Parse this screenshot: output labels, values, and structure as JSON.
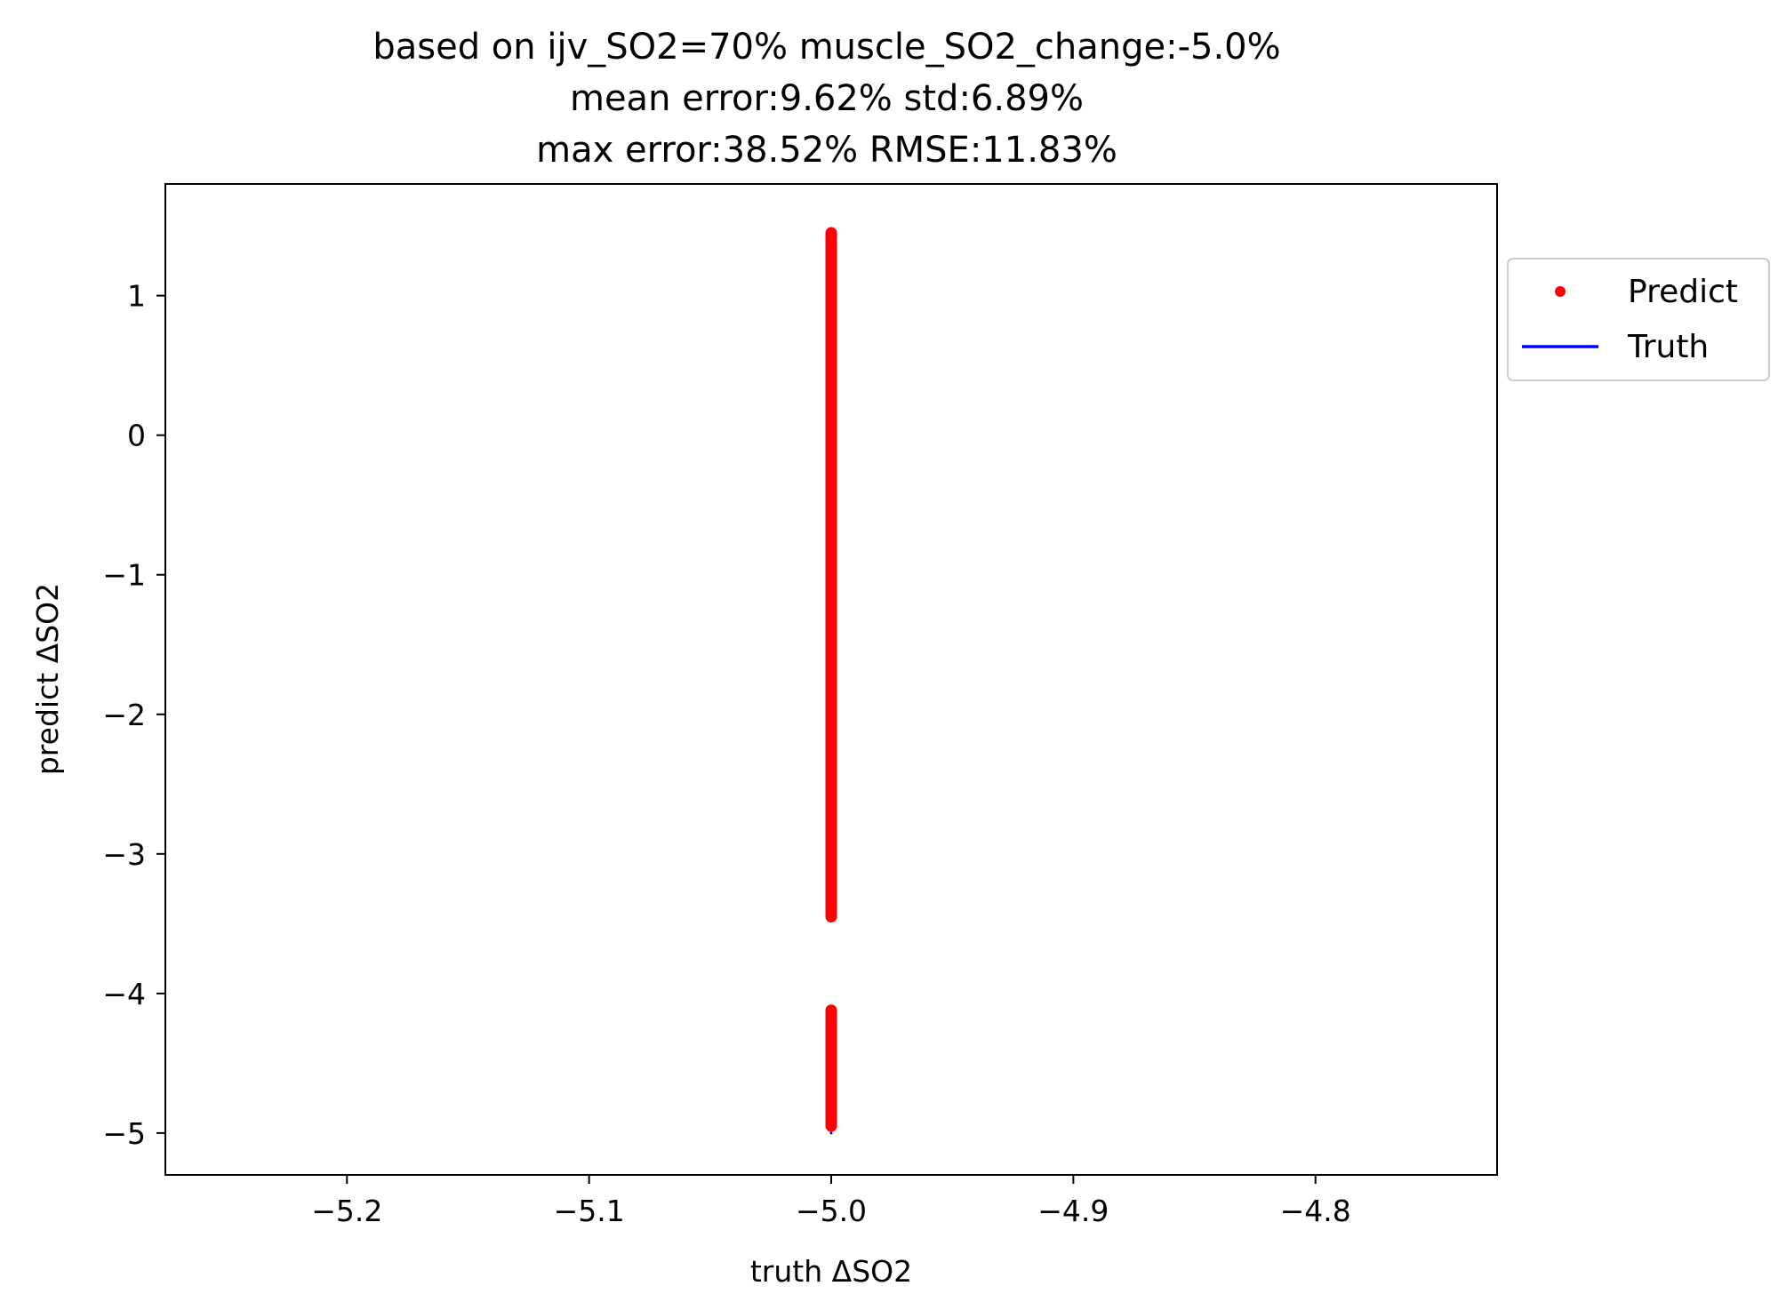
{
  "chart_data": {
    "type": "scatter",
    "title_lines": [
      "based on ijv_SO2=70% muscle_SO2_change:-5.0%",
      "mean error:9.62% std:6.89%",
      "max error:38.52% RMSE:11.83%"
    ],
    "xlabel": "truth ΔSO2",
    "ylabel": "predict ΔSO2",
    "xlim": [
      -5.275,
      -4.725
    ],
    "ylim": [
      -5.3,
      1.8
    ],
    "x_ticks": [
      -5.2,
      -5.1,
      -5.0,
      -4.9,
      -4.8
    ],
    "x_tick_labels": [
      "−5.2",
      "−5.1",
      "−5.0",
      "−4.9",
      "−4.8"
    ],
    "y_ticks": [
      1,
      0,
      -1,
      -2,
      -3,
      -4,
      -5
    ],
    "y_tick_labels": [
      "1",
      "0",
      "−1",
      "−2",
      "−3",
      "−4",
      "−5"
    ],
    "grid": false,
    "legend_position": "outside-right-top",
    "series": [
      {
        "name": "Predict",
        "marker": "dot",
        "color": "#ff0000",
        "segments": [
          {
            "x": -5.0,
            "y_from": -3.45,
            "y_to": 1.45
          },
          {
            "x": -5.0,
            "y_from": -4.95,
            "y_to": -4.12
          }
        ]
      },
      {
        "name": "Truth",
        "marker": "line",
        "color": "#0000ff",
        "points": [
          [
            -5.0,
            -5.0
          ]
        ]
      }
    ]
  }
}
